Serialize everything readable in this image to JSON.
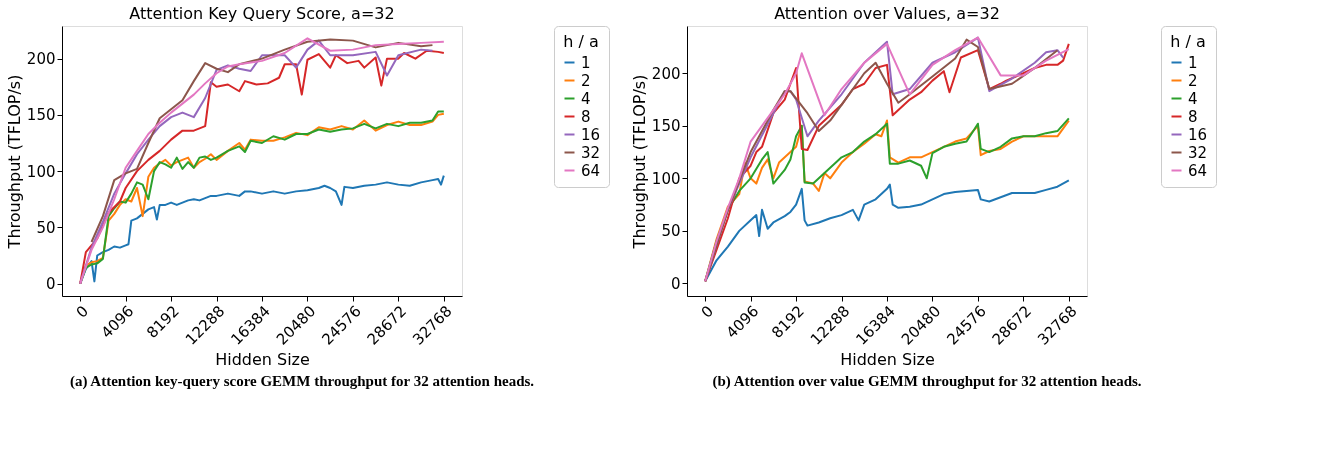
{
  "chart_data": [
    {
      "type": "line",
      "title": "Attention Key Query Score, a=32",
      "xlabel": "Hidden Size",
      "ylabel": "Throughput (TFLOP/s)",
      "legend_title": "h / a",
      "legend": "right",
      "grid": false,
      "xlim": [
        -1638,
        34406
      ],
      "ylim": [
        -11,
        229
      ],
      "xticks": [
        0,
        4096,
        8192,
        12288,
        16384,
        20480,
        24576,
        28672,
        32768
      ],
      "yticks": [
        0,
        50,
        100,
        150,
        200
      ],
      "annotations": [
        "(a) Attention key-query score GEMM throughput for 32 attention heads."
      ],
      "series": [
        {
          "name": "1",
          "color": "#1f77b4",
          "x": [
            0,
            512,
            1024,
            1280,
            1536,
            2048,
            2560,
            3072,
            3584,
            4096,
            4352,
            4608,
            5120,
            5632,
            6144,
            6656,
            6912,
            7168,
            7680,
            8192,
            8704,
            9216,
            9728,
            10240,
            10752,
            11264,
            11776,
            12288,
            13312,
            14336,
            14848,
            15360,
            16384,
            17408,
            18432,
            19456,
            20480,
            21504,
            22016,
            22528,
            23040,
            23552,
            23808,
            24576,
            25600,
            26624,
            27648,
            28672,
            29696,
            30720,
            31744,
            32256,
            32512,
            32768
          ],
          "values": [
            0,
            13,
            20,
            2,
            25,
            28,
            30,
            33,
            32,
            34,
            35,
            56,
            58,
            62,
            66,
            68,
            57,
            70,
            70,
            72,
            70,
            72,
            74,
            75,
            74,
            76,
            78,
            78,
            80,
            78,
            82,
            82,
            80,
            82,
            80,
            82,
            83,
            85,
            87,
            85,
            82,
            70,
            86,
            85,
            87,
            88,
            90,
            88,
            87,
            90,
            92,
            93,
            88,
            96
          ]
        },
        {
          "name": "2",
          "color": "#ff7f0e",
          "x": [
            0,
            512,
            1024,
            1536,
            2048,
            2560,
            3072,
            3584,
            4096,
            4608,
            5120,
            5632,
            6144,
            6656,
            7168,
            7680,
            8192,
            8704,
            9216,
            9728,
            10240,
            10752,
            11264,
            11776,
            12288,
            13312,
            14336,
            14848,
            15360,
            16384,
            17408,
            18432,
            19456,
            20480,
            21504,
            22528,
            23552,
            24576,
            25600,
            26624,
            27648,
            28672,
            29696,
            30720,
            31744,
            32256,
            32768
          ],
          "values": [
            0,
            16,
            19,
            20,
            23,
            56,
            62,
            70,
            75,
            73,
            85,
            60,
            95,
            103,
            107,
            110,
            105,
            108,
            110,
            112,
            103,
            108,
            111,
            115,
            110,
            118,
            125,
            119,
            128,
            127,
            127,
            130,
            134,
            132,
            139,
            137,
            140,
            137,
            145,
            136,
            141,
            144,
            141,
            141,
            144,
            150,
            151
          ]
        },
        {
          "name": "4",
          "color": "#2ca02c",
          "x": [
            0,
            512,
            1024,
            1536,
            2048,
            2560,
            3072,
            3584,
            4096,
            4608,
            5120,
            5632,
            6144,
            6656,
            7168,
            7680,
            8192,
            8704,
            9216,
            9728,
            10240,
            10752,
            11264,
            11776,
            12288,
            13312,
            14336,
            14848,
            15360,
            16384,
            17408,
            18432,
            19456,
            20480,
            21504,
            22528,
            23552,
            24576,
            25600,
            26624,
            27648,
            28672,
            29696,
            30720,
            31744,
            32256,
            32768
          ],
          "values": [
            0,
            14,
            17,
            18,
            22,
            60,
            67,
            73,
            72,
            80,
            90,
            88,
            75,
            100,
            108,
            106,
            103,
            112,
            102,
            108,
            103,
            112,
            113,
            110,
            112,
            118,
            122,
            117,
            127,
            125,
            131,
            128,
            133,
            133,
            137,
            135,
            137,
            138,
            142,
            138,
            142,
            140,
            143,
            143,
            145,
            153,
            153
          ]
        },
        {
          "name": "8",
          "color": "#d62728",
          "x": [
            0,
            512,
            1536,
            2560,
            3584,
            4096,
            5120,
            6144,
            7168,
            8192,
            9216,
            10240,
            11264,
            11776,
            12288,
            13312,
            14336,
            14848,
            15872,
            16896,
            17920,
            18432,
            19456,
            19968,
            20480,
            21504,
            22528,
            23040,
            24064,
            25088,
            25600,
            26624,
            27136,
            27648,
            28672,
            29184,
            30208,
            31232,
            32256,
            32768
          ],
          "values": [
            0,
            28,
            40,
            63,
            73,
            85,
            100,
            110,
            118,
            128,
            136,
            136,
            140,
            179,
            175,
            177,
            171,
            180,
            177,
            178,
            183,
            195,
            195,
            168,
            199,
            204,
            192,
            203,
            196,
            198,
            192,
            201,
            176,
            200,
            200,
            205,
            200,
            207,
            206,
            205
          ]
        },
        {
          "name": "16",
          "color": "#9467bd",
          "x": [
            0,
            1024,
            2048,
            3072,
            4096,
            5120,
            6144,
            7168,
            8192,
            9216,
            10240,
            11264,
            12288,
            13312,
            14336,
            15360,
            16384,
            18432,
            19456,
            20480,
            21504,
            22528,
            24576,
            26624,
            27648,
            28672,
            30720,
            31744
          ],
          "values": [
            0,
            32,
            55,
            80,
            98,
            115,
            128,
            140,
            148,
            152,
            148,
            165,
            190,
            194,
            191,
            189,
            203,
            203,
            192,
            208,
            216,
            203,
            203,
            206,
            185,
            203,
            208,
            207
          ]
        },
        {
          "name": "32",
          "color": "#8c564b",
          "x": [
            1024,
            2048,
            3072,
            4096,
            5120,
            6144,
            7168,
            8192,
            9216,
            10240,
            11264,
            12288,
            13312,
            14336,
            16384,
            18432,
            20480,
            22528,
            24576,
            26624,
            28672,
            30720,
            31744
          ],
          "values": [
            37,
            60,
            92,
            98,
            102,
            125,
            147,
            155,
            163,
            180,
            196,
            191,
            188,
            195,
            200,
            208,
            215,
            217,
            216,
            210,
            214,
            211,
            212
          ]
        },
        {
          "name": "64",
          "color": "#e377c2",
          "x": [
            0,
            1024,
            2048,
            3072,
            4096,
            5120,
            6144,
            7168,
            8192,
            9216,
            10240,
            11264,
            12288,
            13312,
            14336,
            16384,
            18432,
            20480,
            22528,
            24576,
            26624,
            28672,
            30720,
            32768
          ],
          "values": [
            0,
            30,
            50,
            75,
            103,
            118,
            133,
            143,
            152,
            160,
            168,
            178,
            187,
            193,
            195,
            198,
            205,
            218,
            207,
            208,
            212,
            213,
            214,
            215
          ]
        }
      ]
    },
    {
      "type": "line",
      "title": "Attention over Values, a=32",
      "xlabel": "Hidden Size",
      "ylabel": "Throughput (TFLOP/s)",
      "legend_title": "h / a",
      "legend": "right",
      "grid": false,
      "xlim": [
        -1638,
        34406
      ],
      "ylim": [
        -12,
        245
      ],
      "xticks": [
        0,
        4096,
        8192,
        12288,
        16384,
        20480,
        24576,
        28672,
        32768
      ],
      "yticks": [
        0,
        50,
        100,
        150,
        200
      ],
      "annotations": [
        "(b) Attention over value GEMM throughput for 32 attention heads."
      ],
      "series": [
        {
          "name": "1",
          "color": "#1f77b4",
          "x": [
            0,
            1024,
            2048,
            3072,
            4096,
            4608,
            4864,
            5120,
            5632,
            6144,
            7168,
            7680,
            8192,
            8704,
            8960,
            9216,
            10240,
            11264,
            12288,
            13312,
            13824,
            14336,
            15360,
            16384,
            16640,
            16896,
            17408,
            18432,
            19456,
            20480,
            21504,
            22528,
            23552,
            24576,
            24832,
            25600,
            26624,
            27648,
            28672,
            29696,
            30720,
            31744,
            32768
          ],
          "values": [
            2,
            22,
            35,
            50,
            60,
            65,
            45,
            70,
            52,
            58,
            64,
            68,
            75,
            90,
            60,
            55,
            58,
            62,
            65,
            70,
            60,
            75,
            80,
            90,
            94,
            75,
            72,
            73,
            75,
            80,
            85,
            87,
            88,
            89,
            80,
            78,
            82,
            86,
            86,
            86,
            89,
            92,
            98
          ]
        },
        {
          "name": "2",
          "color": "#ff7f0e",
          "x": [
            0,
            1024,
            2048,
            3072,
            3584,
            4096,
            4608,
            5120,
            5632,
            6144,
            6656,
            7168,
            7680,
            8192,
            8704,
            8960,
            9728,
            10240,
            10752,
            11264,
            12288,
            13312,
            14336,
            15360,
            15872,
            16384,
            16640,
            17408,
            18432,
            19456,
            20480,
            21504,
            22528,
            23552,
            24576,
            24832,
            25600,
            26624,
            27648,
            28672,
            29696,
            30720,
            31744,
            32768
          ],
          "values": [
            2,
            42,
            73,
            85,
            115,
            100,
            95,
            110,
            118,
            100,
            115,
            120,
            125,
            130,
            150,
            97,
            95,
            88,
            105,
            100,
            115,
            125,
            133,
            142,
            140,
            155,
            120,
            115,
            120,
            120,
            125,
            130,
            135,
            138,
            150,
            122,
            126,
            128,
            135,
            140,
            140,
            140,
            140,
            155
          ]
        },
        {
          "name": "4",
          "color": "#2ca02c",
          "x": [
            0,
            1024,
            2048,
            3072,
            4096,
            5120,
            5632,
            6144,
            7168,
            7680,
            8192,
            8704,
            8960,
            9728,
            10240,
            11264,
            12288,
            13312,
            14336,
            15360,
            16384,
            16640,
            17408,
            18432,
            19456,
            19968,
            20480,
            21504,
            22528,
            23552,
            24576,
            24832,
            25600,
            26624,
            27648,
            28672,
            29696,
            30720,
            31744,
            32768
          ],
          "values": [
            2,
            40,
            70,
            88,
            100,
            118,
            125,
            95,
            108,
            118,
            140,
            150,
            96,
            95,
            100,
            110,
            120,
            125,
            135,
            142,
            152,
            114,
            114,
            117,
            112,
            100,
            124,
            130,
            133,
            135,
            152,
            128,
            125,
            130,
            138,
            140,
            140,
            143,
            145,
            157
          ]
        },
        {
          "name": "8",
          "color": "#d62728",
          "x": [
            0,
            2048,
            3072,
            4096,
            4608,
            5120,
            6144,
            7168,
            7680,
            8192,
            8704,
            9216,
            10240,
            12288,
            13312,
            14336,
            15360,
            16384,
            16896,
            18432,
            19456,
            20480,
            21504,
            22016,
            23040,
            24576,
            25600,
            26624,
            27136,
            28672,
            29696,
            30720,
            31744,
            32256,
            32768
          ],
          "values": [
            2,
            62,
            100,
            112,
            125,
            130,
            162,
            175,
            190,
            205,
            128,
            127,
            150,
            170,
            185,
            190,
            205,
            208,
            160,
            175,
            182,
            193,
            202,
            182,
            215,
            222,
            185,
            190,
            193,
            200,
            205,
            208,
            208,
            212,
            228
          ]
        },
        {
          "name": "16",
          "color": "#9467bd",
          "x": [
            0,
            2048,
            4096,
            6144,
            7168,
            7680,
            8192,
            9216,
            10240,
            12288,
            14336,
            16384,
            16896,
            18432,
            20480,
            22528,
            24576,
            25600,
            27648,
            29696,
            30720,
            31744,
            32256
          ],
          "values": [
            2,
            70,
            120,
            162,
            183,
            183,
            175,
            140,
            155,
            180,
            210,
            230,
            180,
            185,
            210,
            220,
            234,
            183,
            195,
            210,
            220,
            222,
            215
          ]
        },
        {
          "name": "32",
          "color": "#8c564b",
          "x": [
            0,
            2048,
            4096,
            6144,
            7168,
            7680,
            9216,
            10240,
            11264,
            12288,
            14336,
            15360,
            16384,
            17408,
            18432,
            20480,
            22528,
            23552,
            24576,
            25600,
            27648,
            29696,
            31744
          ],
          "values": [
            2,
            70,
            125,
            165,
            183,
            183,
            162,
            145,
            155,
            170,
            200,
            210,
            190,
            172,
            180,
            197,
            214,
            232,
            225,
            185,
            190,
            205,
            222
          ]
        },
        {
          "name": "64",
          "color": "#e377c2",
          "x": [
            0,
            1024,
            2048,
            3072,
            4096,
            5120,
            6144,
            7168,
            8192,
            8704,
            10752,
            12288,
            14336,
            16384,
            18432,
            20480,
            22528,
            24576,
            26624,
            28672,
            30720,
            32768
          ],
          "values": [
            2,
            40,
            72,
            100,
            135,
            150,
            165,
            180,
            200,
            219,
            160,
            185,
            210,
            228,
            180,
            208,
            222,
            234,
            198,
            198,
            212,
            223
          ]
        }
      ]
    }
  ]
}
